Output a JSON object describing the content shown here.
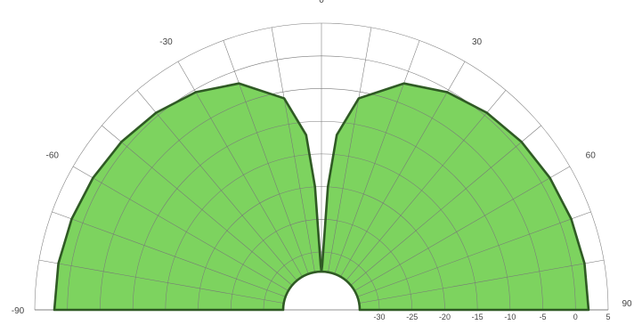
{
  "chart_data": {
    "type": "polar",
    "theta_ticks": [
      -90,
      -60,
      -30,
      0,
      30,
      60,
      90
    ],
    "theta_labels": [
      "-90",
      "-60",
      "-30",
      "0",
      "30",
      "60",
      "90"
    ],
    "radial_ticks": [
      -30,
      -25,
      -20,
      -15,
      -10,
      -5,
      0,
      5
    ],
    "radial_labels": [
      "-30",
      "-25",
      "-20",
      "-15",
      "-10",
      "-5",
      "0",
      "5"
    ],
    "r_range": [
      -33,
      5
    ],
    "grid": true,
    "angular_grid_step": 10,
    "series": [
      {
        "theta": [
          -90,
          -80,
          -70,
          -60,
          -50,
          -40,
          -30,
          -20,
          -10,
          -5,
          -3,
          -1,
          0,
          1,
          3,
          5,
          10,
          20,
          30,
          40,
          50,
          60,
          70,
          80,
          90
        ],
        "r": [
          2.0,
          2.0,
          1.8,
          1.5,
          1.1,
          0.5,
          -0.4,
          -2.0,
          -6.0,
          -12.0,
          -20.0,
          -32.0,
          -33.0,
          -32.0,
          -20.0,
          -12.0,
          -6.0,
          -2.0,
          -0.4,
          0.5,
          1.1,
          1.5,
          1.8,
          2.0,
          2.0
        ],
        "inner_radius": -30,
        "fill": "#7dd35f",
        "stroke": "#2f5a24"
      }
    ]
  }
}
